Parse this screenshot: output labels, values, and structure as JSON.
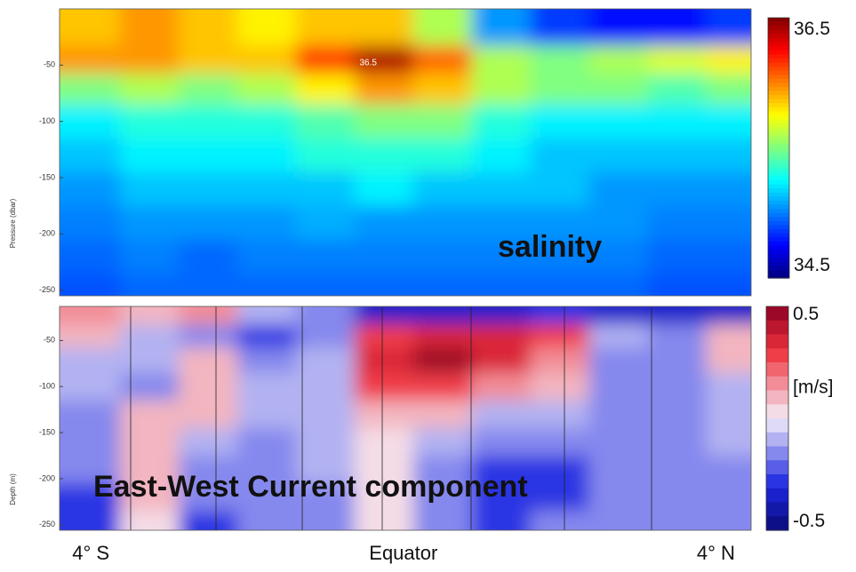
{
  "chart_data": [
    {
      "type": "heatmap",
      "label": "salinity",
      "y_label": "Pressure (dbar)",
      "colormap": "jet",
      "x": [
        -4.0,
        -3.25,
        -2.5,
        -1.75,
        -1.0,
        -0.25,
        0.5,
        1.25,
        2.0,
        2.75,
        3.5,
        4.25
      ],
      "y": [
        -20,
        -45,
        -70,
        -100,
        -130,
        -160,
        -190,
        -220,
        -250
      ],
      "z": [
        [
          35.9,
          36.0,
          35.9,
          35.8,
          35.9,
          35.9,
          35.6,
          35.0,
          34.8,
          34.7,
          34.7,
          34.8
        ],
        [
          36.0,
          36.0,
          35.9,
          35.9,
          36.2,
          36.5,
          36.1,
          35.6,
          35.5,
          35.6,
          35.7,
          35.8
        ],
        [
          35.5,
          35.6,
          35.5,
          35.6,
          35.8,
          36.0,
          35.9,
          35.6,
          35.5,
          35.5,
          35.4,
          35.5
        ],
        [
          35.2,
          35.3,
          35.3,
          35.3,
          35.4,
          35.5,
          35.5,
          35.3,
          35.2,
          35.2,
          35.2,
          35.2
        ],
        [
          35.1,
          35.2,
          35.2,
          35.2,
          35.3,
          35.3,
          35.3,
          35.2,
          35.1,
          35.1,
          35.1,
          35.1
        ],
        [
          35.0,
          35.1,
          35.1,
          35.1,
          35.1,
          35.2,
          35.1,
          35.1,
          35.1,
          35.0,
          35.0,
          35.0
        ],
        [
          34.95,
          35.0,
          35.0,
          35.0,
          35.05,
          35.0,
          35.0,
          35.0,
          35.0,
          35.0,
          34.95,
          34.95
        ],
        [
          34.9,
          34.95,
          34.9,
          34.95,
          34.95,
          34.95,
          34.95,
          34.95,
          34.95,
          34.95,
          34.9,
          34.9
        ],
        [
          34.85,
          34.9,
          34.9,
          34.9,
          34.9,
          34.9,
          34.9,
          34.9,
          34.9,
          34.9,
          34.85,
          34.85
        ]
      ],
      "xlim": [
        -4.4,
        4.45
      ],
      "ylim": [
        -255,
        0
      ],
      "yticks": [
        -50,
        -100,
        -150,
        -200,
        -250
      ],
      "annotations": [
        {
          "text": "36.5",
          "x": -0.45,
          "y": -48
        }
      ],
      "colorbar": {
        "lim": [
          34.4,
          36.6
        ],
        "ticks": [
          34.5,
          36.5
        ]
      }
    },
    {
      "type": "heatmap",
      "label": "East-West Current component",
      "y_label": "Depth (m)",
      "colormap": "bwr",
      "x": [
        -4.0,
        -3.25,
        -2.5,
        -1.75,
        -1.0,
        -0.25,
        0.5,
        1.25,
        2.0,
        2.75,
        3.5,
        4.25
      ],
      "y": [
        -20,
        -45,
        -70,
        -100,
        -130,
        -160,
        -190,
        -220,
        -250
      ],
      "z": [
        [
          0.2,
          0.1,
          0.2,
          -0.1,
          -0.2,
          -0.4,
          -0.4,
          -0.4,
          -0.3,
          -0.4,
          -0.4,
          -0.4
        ],
        [
          0.1,
          -0.1,
          -0.2,
          -0.3,
          -0.2,
          0.3,
          0.4,
          0.4,
          0.3,
          -0.1,
          -0.2,
          0.1
        ],
        [
          -0.1,
          -0.1,
          0.1,
          -0.2,
          -0.1,
          0.4,
          0.5,
          0.4,
          0.2,
          -0.2,
          -0.2,
          0.1
        ],
        [
          -0.1,
          -0.2,
          0.1,
          -0.1,
          -0.1,
          0.3,
          0.3,
          0.2,
          0.1,
          -0.2,
          -0.2,
          -0.1
        ],
        [
          -0.2,
          0.1,
          0.1,
          -0.1,
          -0.1,
          0.1,
          0.1,
          -0.1,
          -0.1,
          -0.2,
          -0.2,
          -0.1
        ],
        [
          -0.2,
          0.1,
          -0.1,
          -0.2,
          -0.1,
          0.0,
          -0.1,
          -0.2,
          -0.2,
          -0.2,
          -0.2,
          -0.1
        ],
        [
          -0.2,
          0.1,
          -0.2,
          -0.2,
          -0.1,
          0.0,
          -0.2,
          -0.3,
          -0.3,
          -0.2,
          -0.2,
          -0.2
        ],
        [
          -0.3,
          0.1,
          -0.2,
          -0.2,
          -0.2,
          0.0,
          -0.2,
          -0.3,
          -0.3,
          -0.2,
          -0.2,
          -0.2
        ],
        [
          -0.3,
          0.0,
          -0.3,
          -0.2,
          -0.2,
          0.0,
          -0.2,
          -0.3,
          -0.2,
          -0.2,
          -0.2,
          -0.2
        ]
      ],
      "xlim": [
        -4.4,
        4.45
      ],
      "ylim": [
        -256,
        -13
      ],
      "yticks": [
        -50,
        -100,
        -150,
        -200,
        -250
      ],
      "xticks": [
        {
          "value": -4,
          "label": "4° S"
        },
        {
          "value": 0,
          "label": "Equator"
        },
        {
          "value": 4,
          "label": "4° N"
        }
      ],
      "colorbar": {
        "lim": [
          -0.54,
          0.54
        ],
        "ticks": [
          -0.5,
          0.5
        ],
        "label": "[m/s]"
      }
    }
  ]
}
